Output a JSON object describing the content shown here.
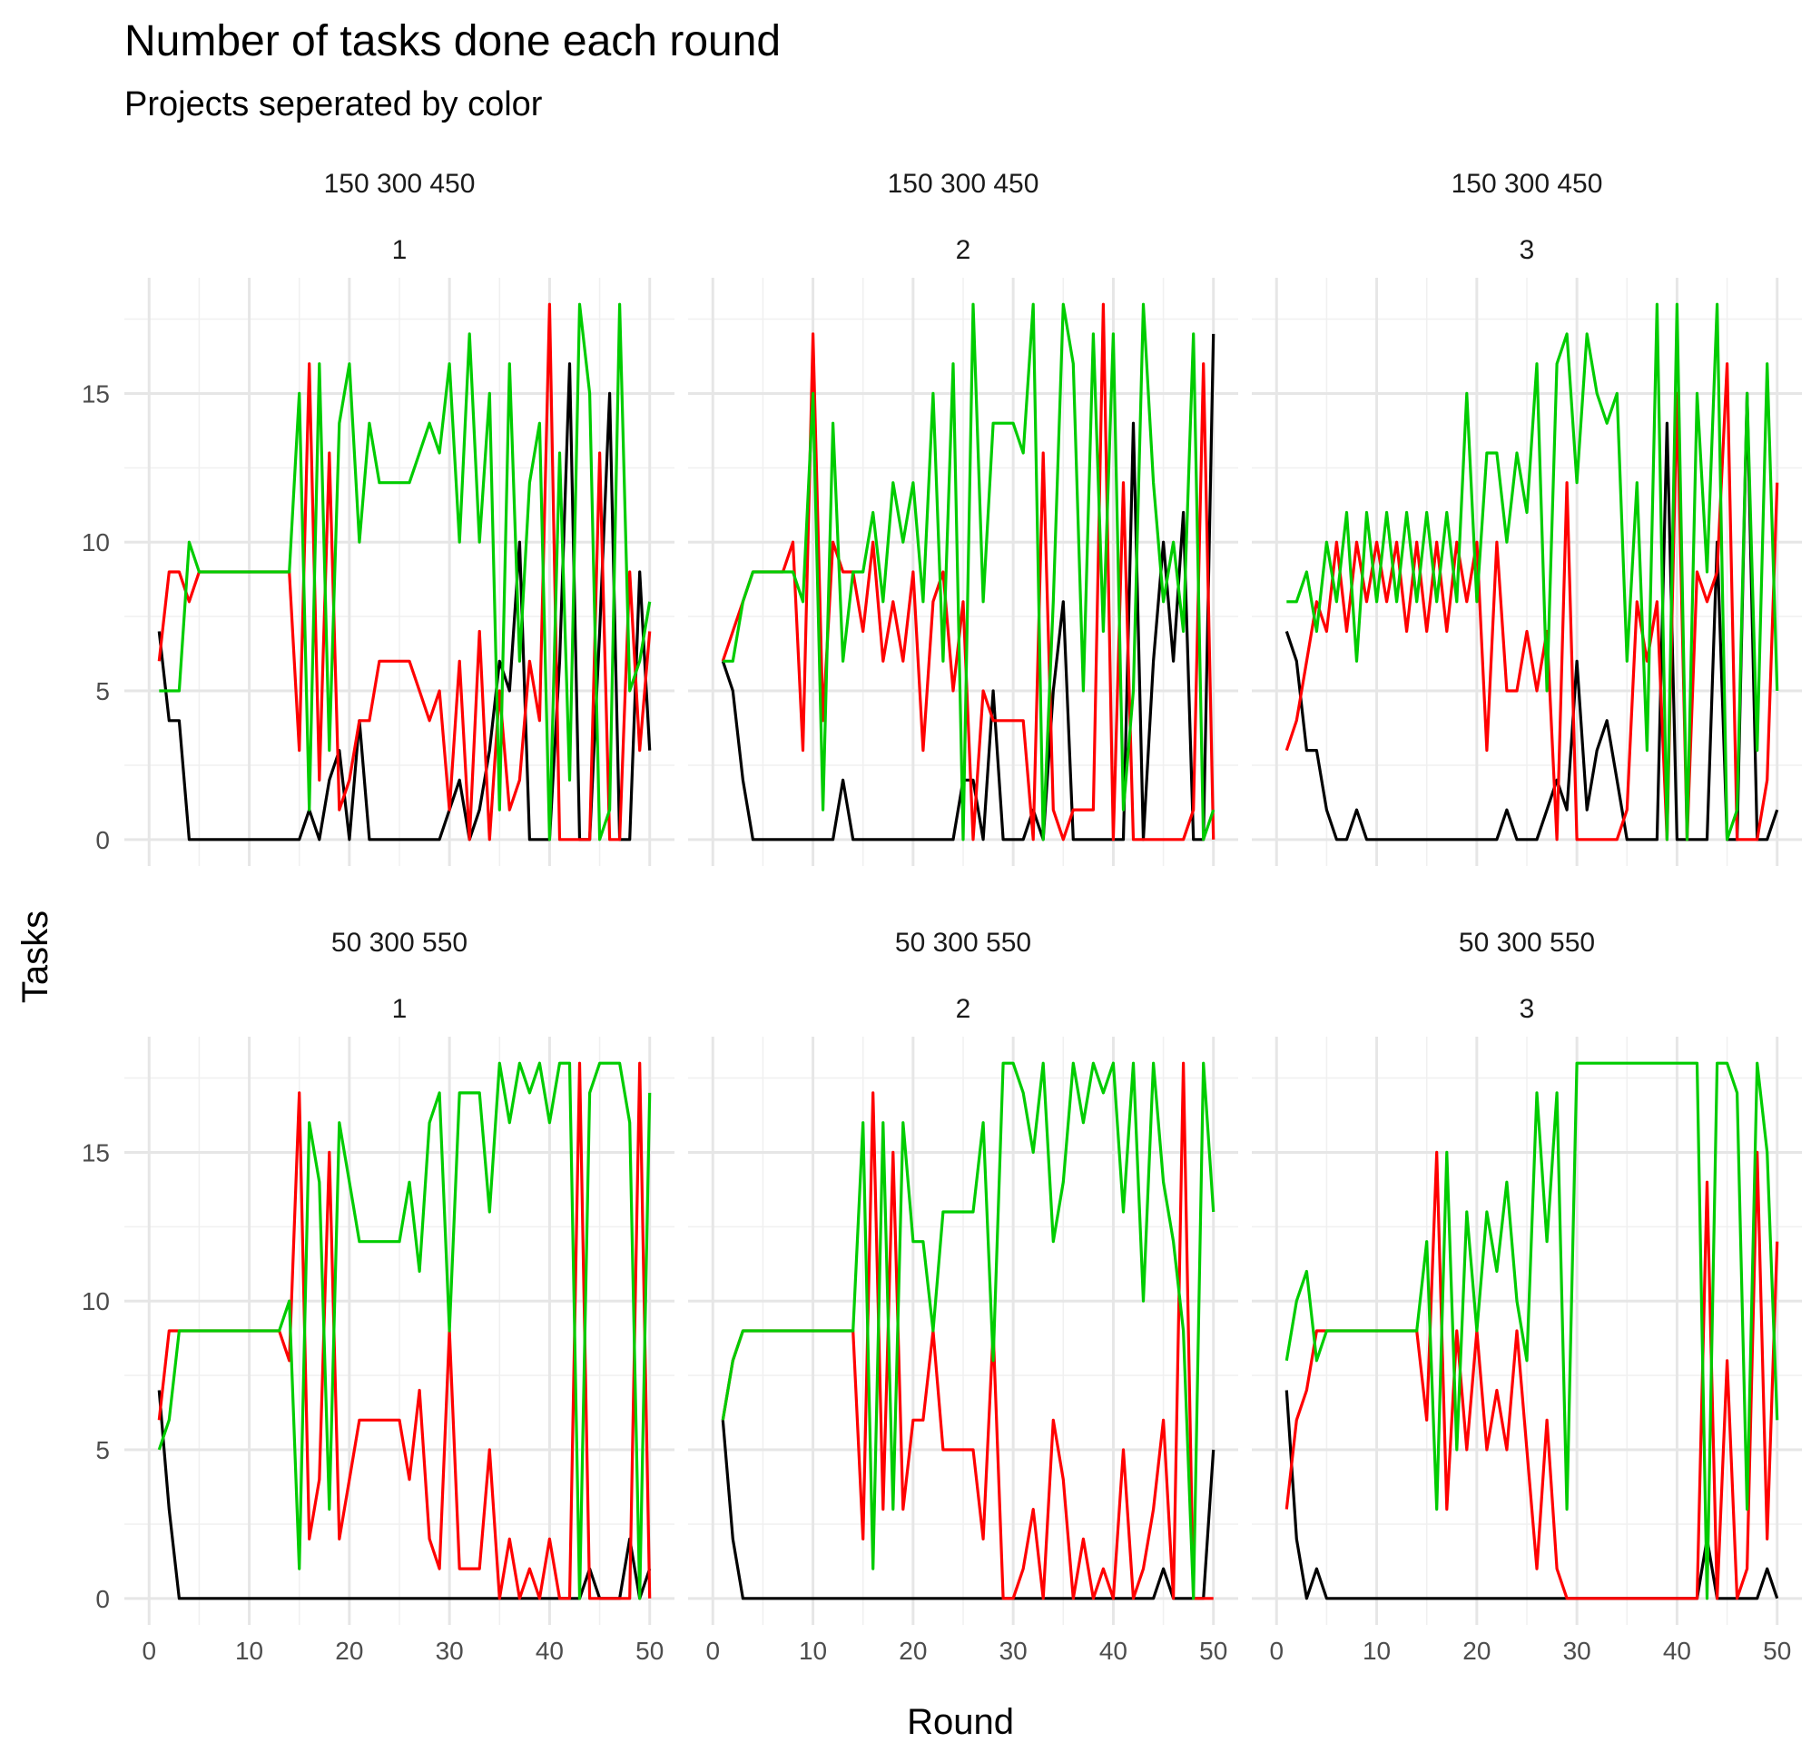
{
  "chart_data": {
    "type": "line",
    "title": "Number of tasks done each round",
    "subtitle": "Projects seperated by color",
    "xlabel": "Round",
    "ylabel": "Tasks",
    "xlim": [
      0,
      50
    ],
    "ylim": [
      0,
      18
    ],
    "xticks": [
      0,
      10,
      20,
      30,
      40,
      50
    ],
    "yticks": [
      0,
      5,
      10,
      15
    ],
    "grid": true,
    "legend": "none",
    "colors": {
      "black": "#000000",
      "red": "#ff0000",
      "green": "#00cc00"
    },
    "x": [
      1,
      2,
      3,
      4,
      5,
      6,
      7,
      8,
      9,
      10,
      11,
      12,
      13,
      14,
      15,
      16,
      17,
      18,
      19,
      20,
      21,
      22,
      23,
      24,
      25,
      26,
      27,
      28,
      29,
      30,
      31,
      32,
      33,
      34,
      35,
      36,
      37,
      38,
      39,
      40,
      41,
      42,
      43,
      44,
      45,
      46,
      47,
      48,
      49,
      50
    ],
    "panels": [
      {
        "strip_top": "150 300 450",
        "strip_bottom": "1",
        "series": [
          {
            "color": "black",
            "values": [
              7,
              4,
              4,
              0,
              0,
              0,
              0,
              0,
              0,
              0,
              0,
              0,
              0,
              0,
              0,
              1,
              0,
              2,
              3,
              0,
              4,
              0,
              0,
              0,
              0,
              0,
              0,
              0,
              0,
              1,
              2,
              0,
              1,
              3,
              6,
              5,
              10,
              0,
              0,
              0,
              6,
              16,
              0,
              0,
              7,
              15,
              0,
              0,
              9,
              3
            ]
          },
          {
            "color": "red",
            "values": [
              6,
              9,
              9,
              8,
              9,
              9,
              9,
              9,
              9,
              9,
              9,
              9,
              9,
              9,
              3,
              16,
              2,
              13,
              1,
              2,
              4,
              4,
              6,
              6,
              6,
              6,
              5,
              4,
              5,
              1,
              6,
              0,
              7,
              0,
              5,
              1,
              2,
              6,
              4,
              18,
              0,
              0,
              0,
              0,
              13,
              0,
              0,
              9,
              3,
              7
            ]
          },
          {
            "color": "green",
            "values": [
              5,
              5,
              5,
              10,
              9,
              9,
              9,
              9,
              9,
              9,
              9,
              9,
              9,
              9,
              15,
              1,
              16,
              3,
              14,
              16,
              10,
              14,
              12,
              12,
              12,
              12,
              13,
              14,
              13,
              16,
              10,
              17,
              10,
              15,
              1,
              16,
              6,
              12,
              14,
              0,
              13,
              2,
              18,
              15,
              0,
              1,
              18,
              5,
              6,
              8
            ]
          }
        ]
      },
      {
        "strip_top": "150 300 450",
        "strip_bottom": "2",
        "series": [
          {
            "color": "black",
            "values": [
              6,
              5,
              2,
              0,
              0,
              0,
              0,
              0,
              0,
              0,
              0,
              0,
              2,
              0,
              0,
              0,
              0,
              0,
              0,
              0,
              0,
              0,
              0,
              0,
              2,
              2,
              0,
              5,
              0,
              0,
              0,
              1,
              0,
              5,
              8,
              0,
              0,
              0,
              0,
              0,
              0,
              14,
              0,
              6,
              10,
              6,
              11,
              0,
              0,
              17
            ]
          },
          {
            "color": "red",
            "values": [
              6,
              7,
              8,
              9,
              9,
              9,
              9,
              10,
              3,
              17,
              4,
              10,
              9,
              9,
              7,
              10,
              6,
              8,
              6,
              9,
              3,
              8,
              9,
              5,
              8,
              0,
              5,
              4,
              4,
              4,
              4,
              0,
              13,
              1,
              0,
              1,
              1,
              1,
              18,
              0,
              12,
              0,
              0,
              0,
              0,
              0,
              0,
              1,
              16,
              0
            ]
          },
          {
            "color": "green",
            "values": [
              6,
              6,
              8,
              9,
              9,
              9,
              9,
              9,
              8,
              15,
              1,
              14,
              6,
              9,
              9,
              11,
              8,
              12,
              10,
              12,
              8,
              15,
              6,
              16,
              0,
              18,
              8,
              14,
              14,
              14,
              13,
              18,
              0,
              8,
              18,
              16,
              5,
              17,
              7,
              17,
              1,
              5,
              18,
              12,
              8,
              10,
              7,
              17,
              0,
              1
            ]
          }
        ]
      },
      {
        "strip_top": "150 300 450",
        "strip_bottom": "3",
        "series": [
          {
            "color": "black",
            "values": [
              7,
              6,
              3,
              3,
              1,
              0,
              0,
              1,
              0,
              0,
              0,
              0,
              0,
              0,
              0,
              0,
              0,
              0,
              0,
              0,
              0,
              0,
              1,
              0,
              0,
              0,
              1,
              2,
              1,
              6,
              1,
              3,
              4,
              2,
              0,
              0,
              0,
              0,
              14,
              0,
              0,
              0,
              0,
              10,
              0,
              0,
              15,
              0,
              0,
              1
            ]
          },
          {
            "color": "red",
            "values": [
              3,
              4,
              6,
              8,
              7,
              10,
              7,
              10,
              8,
              10,
              8,
              10,
              7,
              10,
              7,
              10,
              7,
              10,
              8,
              10,
              3,
              10,
              5,
              5,
              7,
              5,
              7,
              0,
              12,
              0,
              0,
              0,
              0,
              0,
              1,
              8,
              6,
              8,
              0,
              15,
              0,
              9,
              8,
              9,
              16,
              0,
              0,
              0,
              2,
              12
            ]
          },
          {
            "color": "green",
            "values": [
              8,
              8,
              9,
              7,
              10,
              8,
              11,
              6,
              11,
              8,
              11,
              8,
              11,
              8,
              11,
              8,
              11,
              8,
              15,
              8,
              13,
              13,
              10,
              13,
              11,
              16,
              5,
              16,
              17,
              12,
              17,
              15,
              14,
              15,
              6,
              12,
              3,
              18,
              0,
              18,
              0,
              15,
              9,
              18,
              0,
              1,
              15,
              3,
              16,
              5
            ]
          }
        ]
      },
      {
        "strip_top": "50 300 550",
        "strip_bottom": "1",
        "series": [
          {
            "color": "black",
            "values": [
              7,
              3,
              0,
              0,
              0,
              0,
              0,
              0,
              0,
              0,
              0,
              0,
              0,
              0,
              0,
              0,
              0,
              0,
              0,
              0,
              0,
              0,
              0,
              0,
              0,
              0,
              0,
              0,
              0,
              0,
              0,
              0,
              0,
              0,
              0,
              0,
              0,
              0,
              0,
              0,
              0,
              0,
              0,
              1,
              0,
              0,
              0,
              2,
              0,
              1
            ]
          },
          {
            "color": "red",
            "values": [
              6,
              9,
              9,
              9,
              9,
              9,
              9,
              9,
              9,
              9,
              9,
              9,
              9,
              8,
              17,
              2,
              4,
              15,
              2,
              4,
              6,
              6,
              6,
              6,
              6,
              4,
              7,
              2,
              1,
              9,
              1,
              1,
              1,
              5,
              0,
              2,
              0,
              1,
              0,
              2,
              0,
              0,
              18,
              0,
              0,
              0,
              0,
              0,
              18,
              0
            ]
          },
          {
            "color": "green",
            "values": [
              5,
              6,
              9,
              9,
              9,
              9,
              9,
              9,
              9,
              9,
              9,
              9,
              9,
              10,
              1,
              16,
              14,
              3,
              16,
              14,
              12,
              12,
              12,
              12,
              12,
              14,
              11,
              16,
              17,
              9,
              17,
              17,
              17,
              13,
              18,
              16,
              18,
              17,
              18,
              16,
              18,
              18,
              0,
              17,
              18,
              18,
              18,
              16,
              0,
              17
            ]
          }
        ]
      },
      {
        "strip_top": "50 300 550",
        "strip_bottom": "2",
        "series": [
          {
            "color": "black",
            "values": [
              6,
              2,
              0,
              0,
              0,
              0,
              0,
              0,
              0,
              0,
              0,
              0,
              0,
              0,
              0,
              0,
              0,
              0,
              0,
              0,
              0,
              0,
              0,
              0,
              0,
              0,
              0,
              0,
              0,
              0,
              0,
              0,
              0,
              0,
              0,
              0,
              0,
              0,
              0,
              0,
              0,
              0,
              0,
              0,
              1,
              0,
              0,
              0,
              0,
              5
            ]
          },
          {
            "color": "red",
            "values": [
              6,
              8,
              9,
              9,
              9,
              9,
              9,
              9,
              9,
              9,
              9,
              9,
              9,
              9,
              2,
              17,
              3,
              15,
              3,
              6,
              6,
              9,
              5,
              5,
              5,
              5,
              2,
              9,
              0,
              0,
              1,
              3,
              0,
              6,
              4,
              0,
              2,
              0,
              1,
              0,
              5,
              0,
              1,
              3,
              6,
              0,
              18,
              0,
              0,
              0
            ]
          },
          {
            "color": "green",
            "values": [
              6,
              8,
              9,
              9,
              9,
              9,
              9,
              9,
              9,
              9,
              9,
              9,
              9,
              9,
              16,
              1,
              16,
              3,
              16,
              12,
              12,
              9,
              13,
              13,
              13,
              13,
              16,
              8,
              18,
              18,
              17,
              15,
              18,
              12,
              14,
              18,
              16,
              18,
              17,
              18,
              13,
              18,
              10,
              18,
              14,
              12,
              9,
              0,
              18,
              13
            ]
          }
        ]
      },
      {
        "strip_top": "50 300 550",
        "strip_bottom": "3",
        "series": [
          {
            "color": "black",
            "values": [
              7,
              2,
              0,
              1,
              0,
              0,
              0,
              0,
              0,
              0,
              0,
              0,
              0,
              0,
              0,
              0,
              0,
              0,
              0,
              0,
              0,
              0,
              0,
              0,
              0,
              0,
              0,
              0,
              0,
              0,
              0,
              0,
              0,
              0,
              0,
              0,
              0,
              0,
              0,
              0,
              0,
              0,
              2,
              0,
              0,
              0,
              0,
              0,
              1,
              0
            ]
          },
          {
            "color": "red",
            "values": [
              3,
              6,
              7,
              9,
              9,
              9,
              9,
              9,
              9,
              9,
              9,
              9,
              9,
              9,
              6,
              15,
              3,
              9,
              5,
              9,
              5,
              7,
              5,
              9,
              5,
              1,
              6,
              1,
              0,
              0,
              0,
              0,
              0,
              0,
              0,
              0,
              0,
              0,
              0,
              0,
              0,
              0,
              14,
              0,
              8,
              0,
              1,
              15,
              2,
              12
            ]
          },
          {
            "color": "green",
            "values": [
              8,
              10,
              11,
              8,
              9,
              9,
              9,
              9,
              9,
              9,
              9,
              9,
              9,
              9,
              12,
              3,
              15,
              5,
              13,
              9,
              13,
              11,
              14,
              10,
              8,
              17,
              12,
              17,
              3,
              18,
              18,
              18,
              18,
              18,
              18,
              18,
              18,
              18,
              18,
              18,
              18,
              18,
              0,
              18,
              18,
              17,
              3,
              18,
              15,
              6
            ]
          }
        ]
      }
    ]
  }
}
